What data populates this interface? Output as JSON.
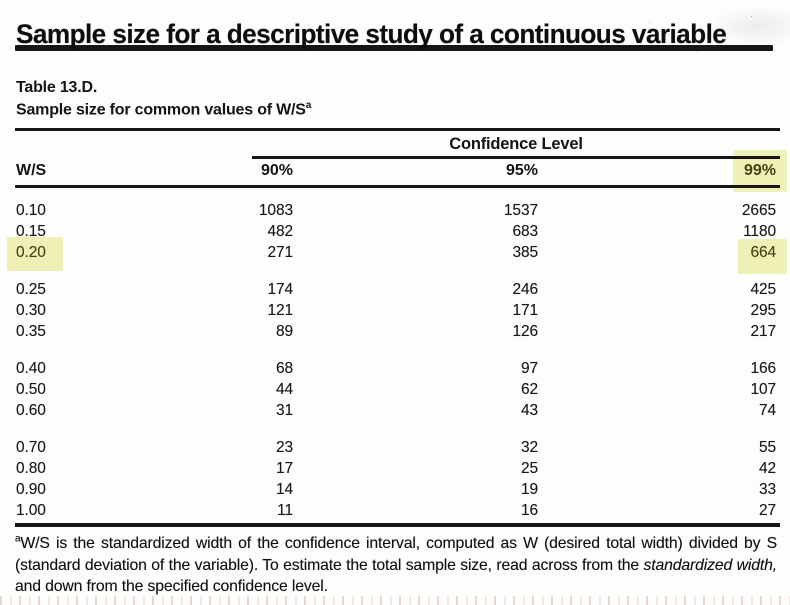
{
  "title": "Sample size for a descriptive study of a continuous variable",
  "table": {
    "label": "Table 13.D.",
    "subtitle": "Sample size for common values of W/S",
    "note_marker": "a",
    "group_header": "Confidence Level",
    "row_axis_label": "W/S",
    "columns": [
      "90%",
      "95%",
      "99%"
    ],
    "highlighted_column": "99%",
    "highlighted_row_label": "0.20",
    "highlighted_cell_value": "664",
    "rows": [
      {
        "ws": "0.10",
        "v90": "1083",
        "v95": "1537",
        "v99": "2665",
        "group": 0,
        "hl_ws": false,
        "hl_v99": false
      },
      {
        "ws": "0.15",
        "v90": "482",
        "v95": "683",
        "v99": "1180",
        "group": 0,
        "hl_ws": false,
        "hl_v99": false
      },
      {
        "ws": "0.20",
        "v90": "271",
        "v95": "385",
        "v99": "664",
        "group": 0,
        "hl_ws": true,
        "hl_v99": true
      },
      {
        "ws": "0.25",
        "v90": "174",
        "v95": "246",
        "v99": "425",
        "group": 1,
        "hl_ws": false,
        "hl_v99": false
      },
      {
        "ws": "0.30",
        "v90": "121",
        "v95": "171",
        "v99": "295",
        "group": 1,
        "hl_ws": false,
        "hl_v99": false
      },
      {
        "ws": "0.35",
        "v90": "89",
        "v95": "126",
        "v99": "217",
        "group": 1,
        "hl_ws": false,
        "hl_v99": false
      },
      {
        "ws": "0.40",
        "v90": "68",
        "v95": "97",
        "v99": "166",
        "group": 2,
        "hl_ws": false,
        "hl_v99": false
      },
      {
        "ws": "0.50",
        "v90": "44",
        "v95": "62",
        "v99": "107",
        "group": 2,
        "hl_ws": false,
        "hl_v99": false
      },
      {
        "ws": "0.60",
        "v90": "31",
        "v95": "43",
        "v99": "74",
        "group": 2,
        "hl_ws": false,
        "hl_v99": false
      },
      {
        "ws": "0.70",
        "v90": "23",
        "v95": "32",
        "v99": "55",
        "group": 3,
        "hl_ws": false,
        "hl_v99": false
      },
      {
        "ws": "0.80",
        "v90": "17",
        "v95": "25",
        "v99": "42",
        "group": 3,
        "hl_ws": false,
        "hl_v99": false
      },
      {
        "ws": "0.90",
        "v90": "14",
        "v95": "19",
        "v99": "33",
        "group": 3,
        "hl_ws": false,
        "hl_v99": false
      },
      {
        "ws": "1.00",
        "v90": "11",
        "v95": "16",
        "v99": "27",
        "group": 3,
        "hl_ws": false,
        "hl_v99": false
      }
    ]
  },
  "footnote": {
    "marker": "a",
    "seg1": "W/S is the standardized width of the confidence interval, computed as W (desired total width) divided by S (standard deviation of the variable). To estimate the total sample size, read across from the ",
    "italic": "standardized width,",
    "seg2": " and down from the specified confidence level."
  },
  "colors": {
    "highlight": "#eef0b6",
    "highlight_text": "#45450f",
    "ink": "#141414"
  },
  "chart_data": {
    "type": "table",
    "title": "Table 13.D. Sample size for common values of W/S",
    "column_group": "Confidence Level",
    "columns": [
      "W/S",
      "90%",
      "95%",
      "99%"
    ],
    "rows": [
      [
        "0.10",
        1083,
        1537,
        2665
      ],
      [
        "0.15",
        482,
        683,
        1180
      ],
      [
        "0.20",
        271,
        385,
        664
      ],
      [
        "0.25",
        174,
        246,
        425
      ],
      [
        "0.30",
        121,
        171,
        295
      ],
      [
        "0.35",
        89,
        126,
        217
      ],
      [
        "0.40",
        68,
        97,
        166
      ],
      [
        "0.50",
        44,
        62,
        107
      ],
      [
        "0.60",
        31,
        43,
        74
      ],
      [
        "0.70",
        23,
        32,
        55
      ],
      [
        "0.80",
        17,
        25,
        42
      ],
      [
        "0.90",
        14,
        19,
        33
      ],
      [
        "1.00",
        11,
        16,
        27
      ]
    ],
    "highlights": [
      "column 99%",
      "row label 0.20",
      "cell 664"
    ]
  }
}
